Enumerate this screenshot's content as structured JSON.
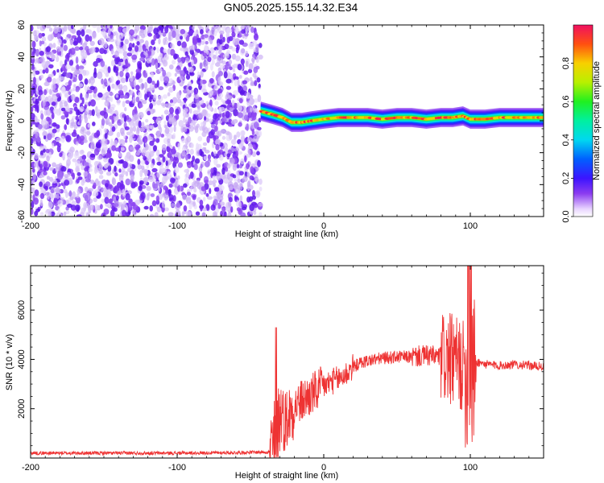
{
  "title": "GN05.2025.155.14.32.E34",
  "chart_data": [
    {
      "type": "heatmap",
      "xlabel": "Height of straight line (km)",
      "ylabel": "Frequency (Hz)",
      "xlim": [
        -200,
        150
      ],
      "ylim": [
        -60,
        60
      ],
      "xticks": [
        -200,
        -100,
        0,
        100
      ],
      "yticks": [
        -60,
        -40,
        -20,
        0,
        20,
        40,
        60
      ],
      "colorbar": {
        "label": "Normalized spectral amplitude",
        "range": [
          0,
          1
        ],
        "ticks": [
          0.0,
          0.2,
          0.4,
          0.6,
          0.8
        ],
        "tick_labels": [
          "0.0",
          "0.2",
          "0.4",
          "0.6",
          "0.8"
        ]
      },
      "noise_region": {
        "x_from": -200,
        "x_to": -43,
        "amplitude": 0.15
      },
      "ridge": {
        "x": [
          -43,
          -35,
          -28,
          -22,
          -15,
          -8,
          0,
          10,
          20,
          30,
          40,
          50,
          60,
          70,
          80,
          88,
          95,
          100,
          110,
          120,
          130,
          140,
          150
        ],
        "freq": [
          6,
          4,
          2,
          -1,
          -1,
          0,
          1,
          2,
          2,
          2,
          1,
          2,
          2,
          1,
          2,
          2,
          3,
          1,
          1,
          2,
          2,
          2,
          2
        ],
        "peak_amplitude": 0.98
      }
    },
    {
      "type": "line",
      "xlabel": "Height of straight line (km)",
      "ylabel": "SNR (10 * v/v)",
      "xlim": [
        -200,
        150
      ],
      "ylim": [
        0,
        7800
      ],
      "xticks": [
        -200,
        -100,
        0,
        100
      ],
      "yticks": [
        2000,
        4000,
        6000
      ],
      "color": "#ee3333",
      "series": [
        {
          "x": [
            -200,
            -150,
            -100,
            -60,
            -36,
            -33,
            -31,
            -29,
            -27,
            -24,
            -20,
            -15,
            -10,
            -5,
            0,
            5,
            10,
            15,
            20,
            25,
            30,
            40,
            50,
            60,
            70,
            80,
            85,
            90,
            95,
            98,
            100,
            102,
            105,
            110,
            120,
            130,
            140,
            150
          ],
          "y": [
            200,
            200,
            200,
            220,
            250,
            700,
            1500,
            1900,
            1500,
            1700,
            2100,
            2300,
            2500,
            2700,
            2900,
            3100,
            3200,
            3400,
            3700,
            3850,
            3950,
            4050,
            4100,
            4100,
            4150,
            4100,
            4000,
            3900,
            3700,
            3500,
            3300,
            3500,
            3900,
            3800,
            3750,
            3800,
            3750,
            3700
          ]
        }
      ]
    }
  ]
}
